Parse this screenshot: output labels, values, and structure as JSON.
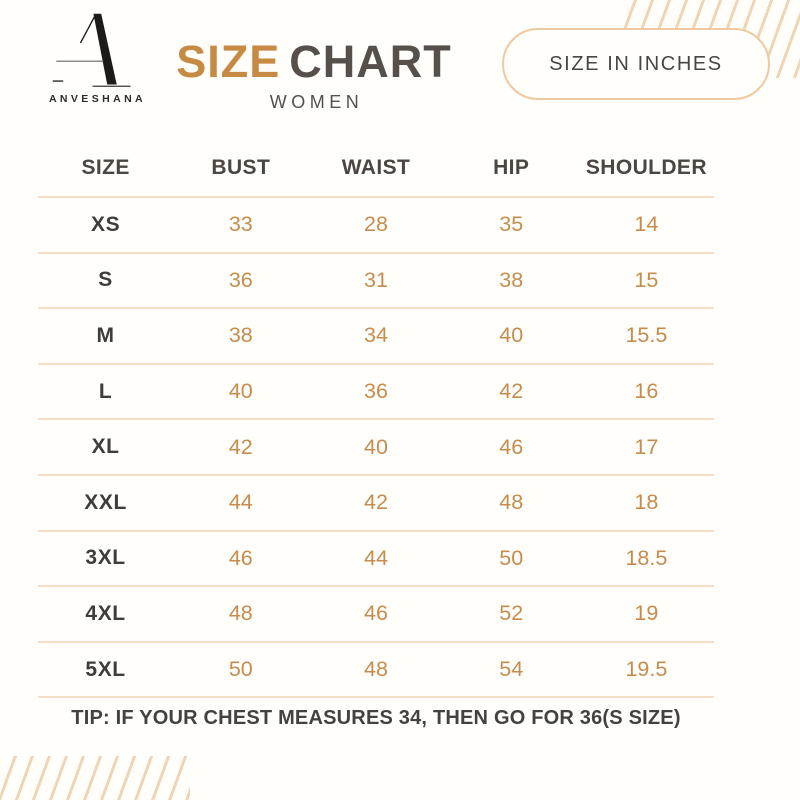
{
  "brand": {
    "monogram": "A",
    "name": "ANVESHANA"
  },
  "header": {
    "title_primary": "SIZE",
    "title_secondary": "CHART",
    "subtitle": "WOMEN",
    "badge": "SIZE IN INCHES"
  },
  "chart_data": {
    "type": "table",
    "title": "SIZE CHART",
    "subtitle": "WOMEN",
    "unit": "SIZE IN INCHES",
    "columns": [
      "SIZE",
      "BUST",
      "WAIST",
      "HIP",
      "SHOULDER"
    ],
    "rows": [
      [
        "XS",
        33,
        28,
        35,
        14
      ],
      [
        "S",
        36,
        31,
        38,
        15
      ],
      [
        "M",
        38,
        34,
        40,
        15.5
      ],
      [
        "L",
        40,
        36,
        42,
        16
      ],
      [
        "XL",
        42,
        40,
        46,
        17
      ],
      [
        "XXL",
        44,
        42,
        48,
        18
      ],
      [
        "3XL",
        46,
        44,
        50,
        18.5
      ],
      [
        "4XL",
        48,
        46,
        52,
        19
      ],
      [
        "5XL",
        50,
        48,
        54,
        19.5
      ]
    ]
  },
  "tip": "TIP: IF YOUR CHEST MEASURES 34, THEN GO FOR 36(S SIZE)",
  "colors": {
    "bg": "#fffefb",
    "accent": "#c78a43",
    "dark": "#57504a",
    "value": "#c68c4e",
    "line": "#f4dfc6",
    "stripe": "#efd5b6",
    "pill_border": "#ecc9a3"
  }
}
